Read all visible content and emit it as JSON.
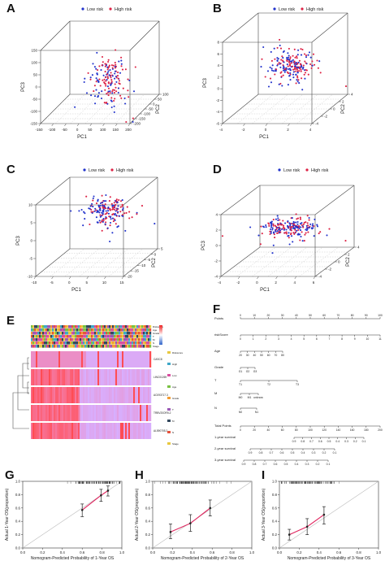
{
  "panel_labels": [
    "A",
    "B",
    "C",
    "D",
    "E",
    "F",
    "G",
    "H",
    "I"
  ],
  "pca_panels": {
    "legend": {
      "low": "Low risk",
      "high": "High risk"
    },
    "colors": {
      "low": "#2233cc",
      "high": "#dd2244"
    },
    "A": {
      "xlabel": "PC1",
      "ylabel": "PC3",
      "zlabel": "PC2",
      "xticks": [
        "-150",
        "-100",
        "-50",
        "0",
        "50",
        "100",
        "150",
        "200"
      ],
      "yticks": [
        "-150",
        "-100",
        "-50",
        "0",
        "50",
        "100",
        "150"
      ],
      "zticks": [
        "-200",
        "-150",
        "-100",
        "-50",
        "0",
        "50",
        "100"
      ]
    },
    "B": {
      "xlabel": "PC1",
      "ylabel": "PC3",
      "zlabel": "PC2",
      "xticks": [
        "-4",
        "-2",
        "0",
        "2",
        "4"
      ],
      "yticks": [
        "-6",
        "-4",
        "-2",
        "0",
        "2",
        "4",
        "6",
        "8"
      ],
      "zticks": [
        "-4",
        "-2",
        "0",
        "2",
        "4"
      ]
    },
    "C": {
      "xlabel": "PC1",
      "ylabel": "PC3",
      "zlabel": "PC2",
      "xticks": [
        "-10",
        "-5",
        "0",
        "5",
        "10",
        "15"
      ],
      "yticks": [
        "-10",
        "-5",
        "0",
        "5",
        "10"
      ],
      "zticks": [
        "-20",
        "-15",
        "-10",
        "-5",
        "0",
        "5"
      ]
    },
    "D": {
      "xlabel": "PC1",
      "ylabel": "PC3",
      "zlabel": "PC2",
      "xticks": [
        "-4",
        "-2",
        "0",
        "2",
        "4",
        "6"
      ],
      "yticks": [
        "-4",
        "-2",
        "0",
        "2",
        "4"
      ],
      "zticks": [
        "-4",
        "-2",
        "0",
        "2",
        "4"
      ]
    }
  },
  "heatmap": {
    "annotation_rows": [
      "Riskscore",
      "Age",
      "Grade",
      "T",
      "M",
      "N",
      "Stage"
    ],
    "genes": [
      "CASC8",
      "LINC01269",
      "AC093717.3",
      "TRBV20OR9-2",
      "AL590705.2"
    ],
    "legend_items": [
      "Riskscore",
      "High",
      "Low",
      "Age",
      "Grade",
      "T",
      "M",
      "N",
      "Stage"
    ]
  },
  "nomogram": {
    "rows": [
      "Points",
      "riskScore",
      "Age",
      "Grade",
      "T",
      "M",
      "N",
      "Total Points",
      "1-year survival",
      "2-year survival",
      "3-year survival"
    ],
    "points_ticks": [
      "0",
      "10",
      "20",
      "30",
      "40",
      "50",
      "60",
      "70",
      "80",
      "90",
      "100"
    ],
    "riskscore_ticks": [
      "0",
      "1",
      "2",
      "3",
      "4",
      "5",
      "6",
      "7",
      "8",
      "9",
      "10",
      "11"
    ],
    "age_ticks": [
      "20",
      "30",
      "40",
      "50",
      "60",
      "70",
      "80"
    ],
    "grade_labels": [
      "G1",
      "G2",
      "G3"
    ],
    "t_labels": [
      "T1",
      "T2",
      "T3"
    ],
    "m_labels": [
      "M0",
      "M1",
      "unknow"
    ],
    "n_labels": [
      "N0",
      "N1"
    ],
    "total_ticks": [
      "0",
      "20",
      "40",
      "60",
      "80",
      "100",
      "120",
      "140",
      "160",
      "180",
      "200"
    ],
    "surv1_ticks": [
      "0.9",
      "0.8",
      "0.7",
      "0.6",
      "0.5",
      "0.4",
      "0.3",
      "0.2",
      "0.1"
    ],
    "surv2_ticks": [
      "0.9",
      "0.8",
      "0.7",
      "0.6",
      "0.5",
      "0.4",
      "0.3",
      "0.2",
      "0.1"
    ],
    "surv3_ticks": [
      "0.9",
      "0.8",
      "0.7",
      "0.6",
      "0.5",
      "0.4",
      "0.3",
      "0.2",
      "0.1"
    ]
  },
  "chart_data": [
    {
      "type": "line",
      "panel": "G",
      "title": "",
      "xlabel": "Nomogram-Predicted Probability of 1-Year OS",
      "ylabel": "Actual 1-Year OS(proportion)",
      "xlim": [
        0,
        1
      ],
      "ylim": [
        0,
        1
      ],
      "xticks": [
        "0.0",
        "0.2",
        "0.4",
        "0.6",
        "0.8",
        "1.0"
      ],
      "yticks": [
        "0.0",
        "0.2",
        "0.4",
        "0.6",
        "0.8",
        "1.0"
      ],
      "series": [
        {
          "x": [
            0.6,
            0.79,
            0.86
          ],
          "y": [
            0.57,
            0.79,
            0.86
          ],
          "err": [
            [
              0.47,
              0.66
            ],
            [
              0.7,
              0.88
            ],
            [
              0.78,
              0.93
            ]
          ]
        }
      ]
    },
    {
      "type": "line",
      "panel": "H",
      "title": "",
      "xlabel": "Nomogram-Predicted Probability of 2-Year OS",
      "ylabel": "Actual 2-Year OS(proportion)",
      "xlim": [
        0,
        1
      ],
      "ylim": [
        0,
        1
      ],
      "xticks": [
        "0.0",
        "0.2",
        "0.4",
        "0.6",
        "0.8",
        "1.0"
      ],
      "yticks": [
        "0.0",
        "0.2",
        "0.4",
        "0.6",
        "0.8",
        "1.0"
      ],
      "series": [
        {
          "x": [
            0.18,
            0.38,
            0.58
          ],
          "y": [
            0.24,
            0.37,
            0.6
          ],
          "err": [
            [
              0.14,
              0.36
            ],
            [
              0.25,
              0.5
            ],
            [
              0.48,
              0.72
            ]
          ]
        }
      ]
    },
    {
      "type": "line",
      "panel": "I",
      "title": "",
      "xlabel": "Nomogram-Predicted Probability of 3-Year OS",
      "ylabel": "Actual 3-Year OS(proportion)",
      "xlim": [
        0,
        1
      ],
      "ylim": [
        0,
        1
      ],
      "xticks": [
        "0.0",
        "0.2",
        "0.4",
        "0.6",
        "0.8",
        "1.0"
      ],
      "yticks": [
        "0.0",
        "0.2",
        "0.4",
        "0.6",
        "0.8",
        "1.0"
      ],
      "series": [
        {
          "x": [
            0.1,
            0.28,
            0.45
          ],
          "y": [
            0.2,
            0.32,
            0.5
          ],
          "err": [
            [
              0.12,
              0.28
            ],
            [
              0.2,
              0.44
            ],
            [
              0.36,
              0.62
            ]
          ]
        }
      ]
    }
  ]
}
